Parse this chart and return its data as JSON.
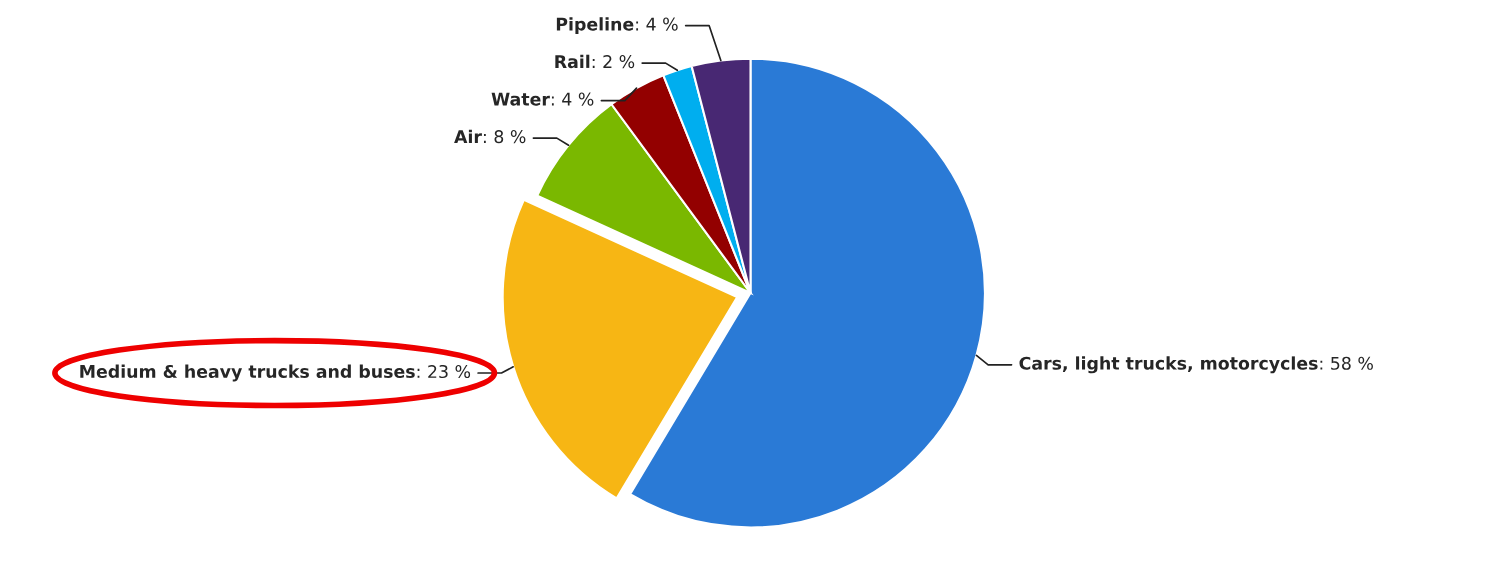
{
  "chart_data": {
    "type": "pie",
    "categories": [
      "Cars, light trucks, motorcycles",
      "Medium & heavy trucks and buses",
      "Air",
      "Water",
      "Rail",
      "Pipeline"
    ],
    "values": [
      58,
      23,
      8,
      4,
      2,
      4
    ],
    "colors": [
      "#2a7ad6",
      "#f7b614",
      "#7ab800",
      "#930000",
      "#00aeef",
      "#482873"
    ],
    "value_labels": [
      ": 58 %",
      ": 23 %",
      ": 8 %",
      ": 4 %",
      ": 2 %",
      ": 4 %"
    ]
  }
}
